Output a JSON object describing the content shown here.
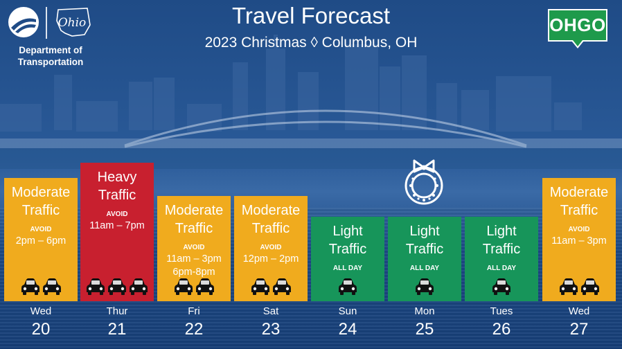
{
  "header": {
    "title": "Travel Forecast",
    "subtitle": "2023 Christmas ◊ Columbus, OH",
    "agency_name_line1": "Department of",
    "agency_name_line2": "Transportation",
    "state_wordmark": "Ohio",
    "brand_badge": "OHGO"
  },
  "colors": {
    "moderate": "#f0ab1e",
    "heavy": "#c8202f",
    "light": "#17955a",
    "background": "#1f4b86",
    "ohgo_green": "#1e9a4b"
  },
  "days": [
    {
      "dow": "Wed",
      "dom": "20",
      "level_line1": "Moderate",
      "level_line2": "Traffic",
      "avoid_label": "AVOID",
      "times": [
        "2pm – 6pm"
      ],
      "cars": 2,
      "severity": "moderate"
    },
    {
      "dow": "Thur",
      "dom": "21",
      "level_line1": "Heavy",
      "level_line2": "Traffic",
      "avoid_label": "AVOID",
      "times": [
        "11am – 7pm"
      ],
      "cars": 3,
      "severity": "heavy"
    },
    {
      "dow": "Fri",
      "dom": "22",
      "level_line1": "Moderate",
      "level_line2": "Traffic",
      "avoid_label": "AVOID",
      "times": [
        "11am – 3pm",
        "6pm-8pm"
      ],
      "cars": 2,
      "severity": "moderate"
    },
    {
      "dow": "Sat",
      "dom": "23",
      "level_line1": "Moderate",
      "level_line2": "Traffic",
      "avoid_label": "AVOID",
      "times": [
        "12pm – 2pm"
      ],
      "cars": 2,
      "severity": "moderate"
    },
    {
      "dow": "Sun",
      "dom": "24",
      "level_line1": "Light",
      "level_line2": "Traffic",
      "avoid_label": "ALL DAY",
      "times": [],
      "cars": 1,
      "severity": "light"
    },
    {
      "dow": "Mon",
      "dom": "25",
      "level_line1": "Light",
      "level_line2": "Traffic",
      "avoid_label": "ALL DAY",
      "times": [],
      "cars": 1,
      "severity": "light"
    },
    {
      "dow": "Tues",
      "dom": "26",
      "level_line1": "Light",
      "level_line2": "Traffic",
      "avoid_label": "ALL DAY",
      "times": [],
      "cars": 1,
      "severity": "light"
    },
    {
      "dow": "Wed",
      "dom": "27",
      "level_line1": "Moderate",
      "level_line2": "Traffic",
      "avoid_label": "AVOID",
      "times": [
        "11am – 3pm"
      ],
      "cars": 2,
      "severity": "moderate"
    }
  ],
  "icons": {
    "agency_logo": "odot-logo-icon",
    "car": "car-icon",
    "holiday": "wreath-icon"
  }
}
